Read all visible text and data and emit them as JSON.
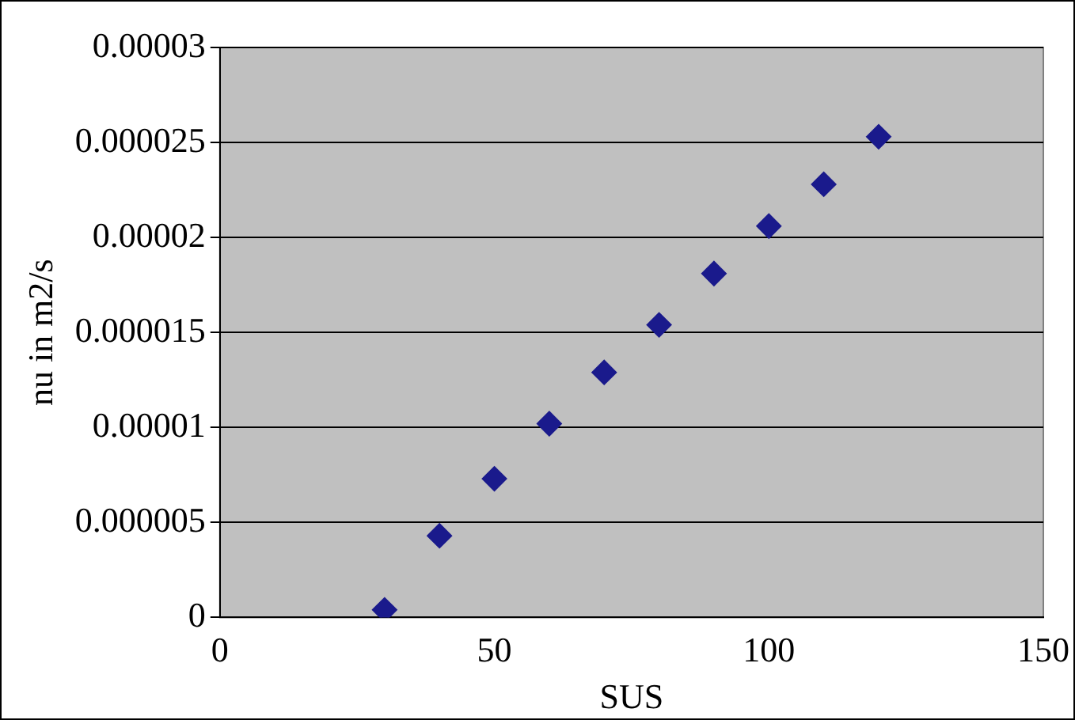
{
  "chart_data": {
    "type": "scatter",
    "xlabel": "SUS",
    "ylabel": "nu in m2/s",
    "x": [
      30,
      40,
      50,
      60,
      70,
      80,
      90,
      100,
      110,
      120
    ],
    "series": [
      {
        "color": "#1a1a8c",
        "values": [
          4e-07,
          4.3e-06,
          7.3e-06,
          1.02e-05,
          1.29e-05,
          1.54e-05,
          1.81e-05,
          2.06e-05,
          2.28e-05,
          2.53e-05
        ]
      }
    ],
    "xlim": [
      0,
      150
    ],
    "xticks": [
      0,
      50,
      100,
      150
    ],
    "ylim": [
      0,
      3e-05
    ],
    "yticks": [
      0,
      {
        "value": 5e-06,
        "label": "0.000005"
      },
      {
        "value": 1e-05,
        "label": "0.00001"
      },
      {
        "value": 1.5e-05,
        "label": "0.000015"
      },
      {
        "value": 2e-05,
        "label": "0.00002"
      },
      {
        "value": 2.5e-05,
        "label": "0.000025"
      },
      {
        "value": 3e-05,
        "label": "0.00003"
      }
    ],
    "grid": "y",
    "legend": false,
    "marker": "diamond"
  }
}
